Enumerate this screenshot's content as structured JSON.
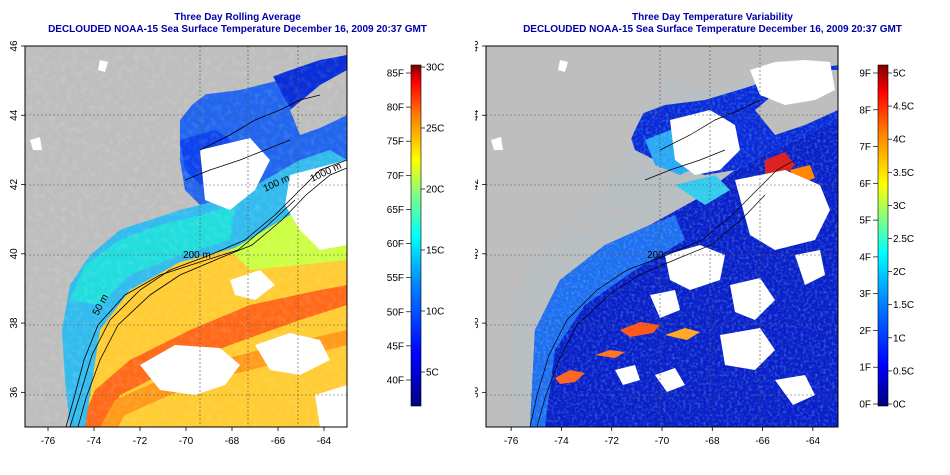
{
  "left_panel": {
    "title": "Three Day Rolling Average",
    "subtitle": "DECLOUDED NOAA-15 Sea Surface Temperature December 16, 2009 20:37 GMT",
    "colorbar_f_labels": [
      "85F",
      "80F",
      "75F",
      "70F",
      "65F",
      "60F",
      "55F",
      "50F",
      "45F",
      "40F"
    ],
    "colorbar_c_labels": [
      "30C",
      "25C",
      "20C",
      "15C",
      "10C",
      "5C"
    ],
    "contour_labels": [
      "200 m",
      "50 m",
      "100 m",
      "1000 m"
    ]
  },
  "right_panel": {
    "title": "Three Day Temperature Variability",
    "subtitle": "DECLOUDED NOAA-15 Sea Surface Temperature December 16, 2009 20:37 GMT",
    "colorbar_f_labels": [
      "9F",
      "8F",
      "7F",
      "6F",
      "5F",
      "4F",
      "3F",
      "2F",
      "1F",
      "0F"
    ],
    "colorbar_c_labels": [
      "5C",
      "4.5C",
      "4C",
      "3.5C",
      "3C",
      "2.5C",
      "2C",
      "1.5C",
      "1C",
      "0.5C",
      "0C"
    ],
    "contour_labels": [
      "200"
    ]
  },
  "x_ticks": [
    "-76",
    "-74",
    "-72",
    "-70",
    "-68",
    "-66",
    "-64"
  ],
  "y_ticks": [
    "36",
    "38",
    "40",
    "42",
    "44",
    "46"
  ],
  "colors": {
    "title": "#0000aa",
    "land": "#bebebe",
    "cloud": "#ffffff",
    "frame": "#000000"
  }
}
